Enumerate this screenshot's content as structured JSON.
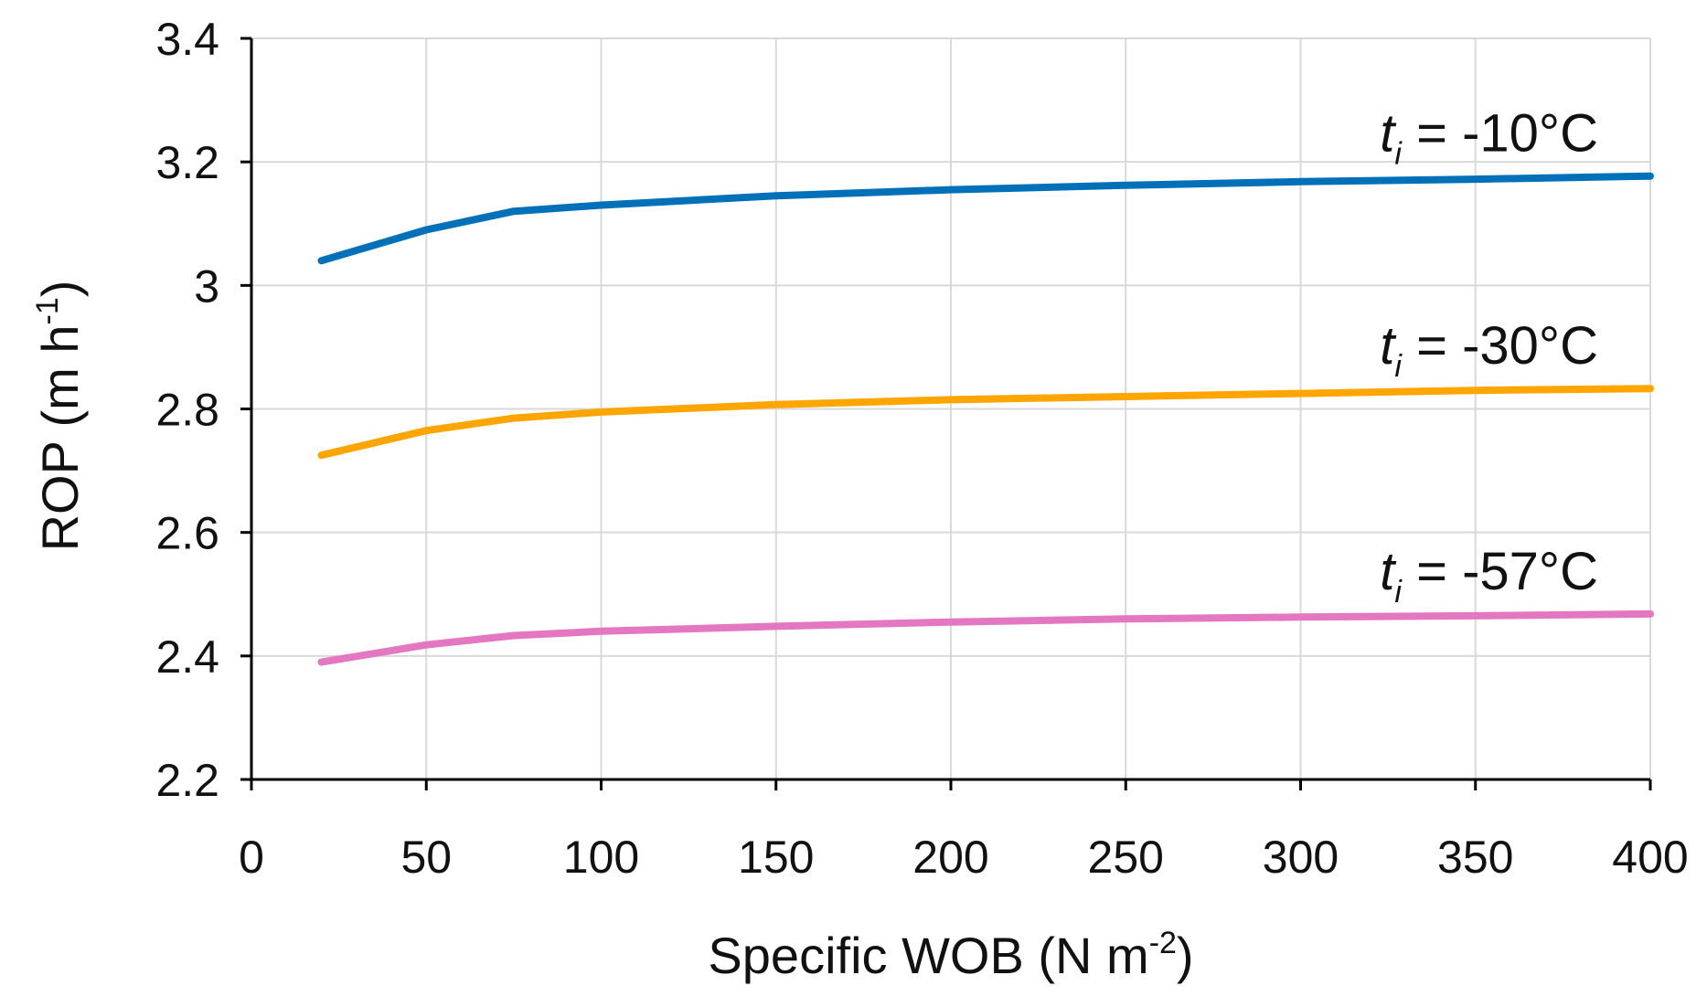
{
  "chart_data": {
    "type": "line",
    "title": "",
    "xlabel": {
      "main": "Specific WOB (N m",
      "sup": "-2",
      "end": ")"
    },
    "ylabel": {
      "main": "ROP (m h",
      "sup": "-1",
      "end": ")"
    },
    "xlim": [
      0,
      400
    ],
    "ylim": [
      2.2,
      3.4
    ],
    "xticks": [
      "0",
      "50",
      "100",
      "150",
      "200",
      "250",
      "300",
      "350",
      "400"
    ],
    "yticks": [
      "2.2",
      "2.4",
      "2.6",
      "2.8",
      "3",
      "3.2",
      "3.4"
    ],
    "grid": true,
    "x": [
      20,
      50,
      75,
      100,
      150,
      200,
      250,
      300,
      350,
      400
    ],
    "series": [
      {
        "name": "t_i = -10°C",
        "label": {
          "t": "t",
          "sub": "i",
          "rest": " = -10°C"
        },
        "color": "#0070b8",
        "values": [
          3.04,
          3.09,
          3.12,
          3.13,
          3.145,
          3.155,
          3.162,
          3.168,
          3.172,
          3.177
        ]
      },
      {
        "name": "t_i = -30°C",
        "label": {
          "t": "t",
          "sub": "i",
          "rest": " = -30°C"
        },
        "color": "#ffa500",
        "values": [
          2.725,
          2.765,
          2.785,
          2.795,
          2.807,
          2.815,
          2.82,
          2.825,
          2.83,
          2.833
        ]
      },
      {
        "name": "t_i = -57°C",
        "label": {
          "t": "t",
          "sub": "i",
          "rest": " = -57°C"
        },
        "color": "#e377c2",
        "values": [
          2.39,
          2.418,
          2.433,
          2.44,
          2.448,
          2.455,
          2.46,
          2.463,
          2.465,
          2.468
        ]
      }
    ]
  }
}
